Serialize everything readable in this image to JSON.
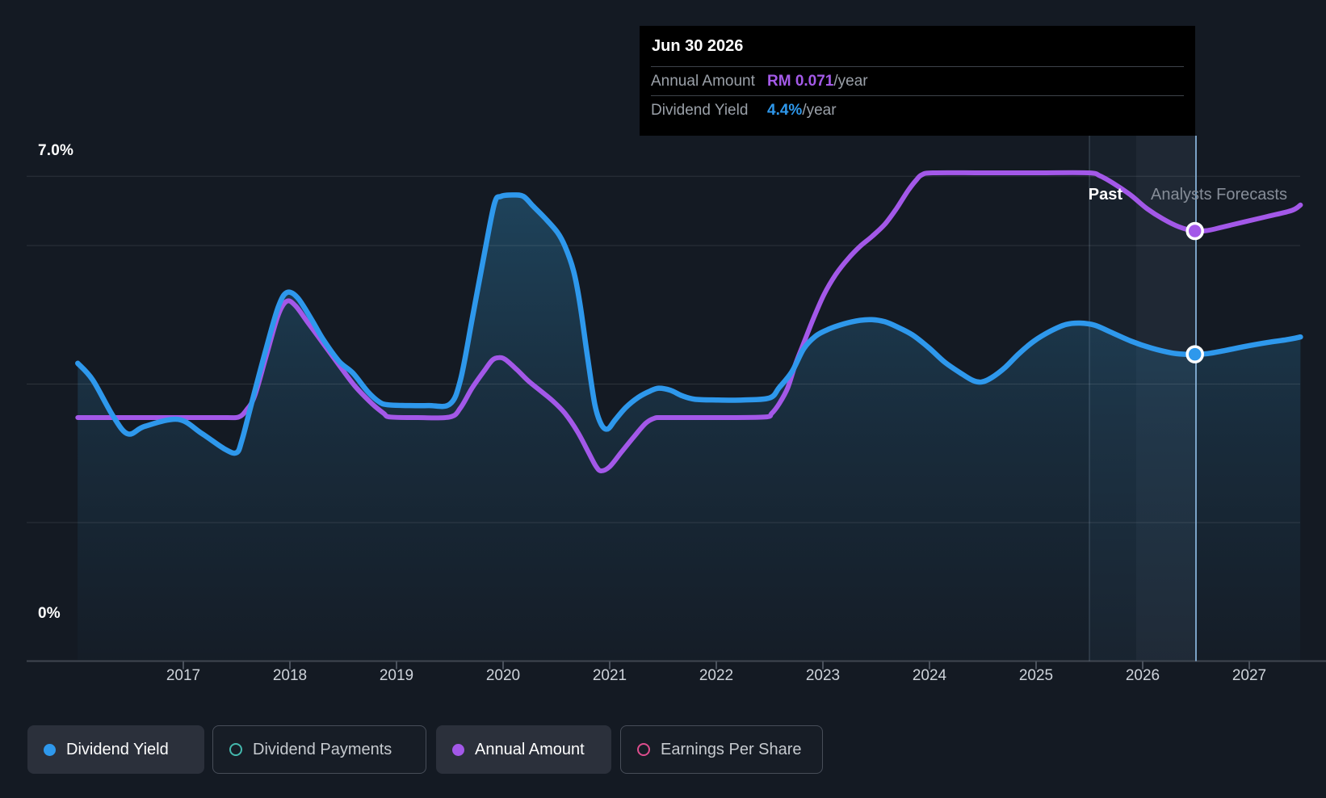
{
  "y_axis": {
    "top_label": "7.0%",
    "bottom_label": "0%"
  },
  "x_axis": {
    "years": [
      "2017",
      "2018",
      "2019",
      "2020",
      "2021",
      "2022",
      "2023",
      "2024",
      "2025",
      "2026",
      "2027"
    ]
  },
  "annotations": {
    "past": "Past",
    "forecast": "Analysts Forecasts"
  },
  "tooltip": {
    "date": "Jun 30 2026",
    "rows": [
      {
        "label": "Annual Amount",
        "value": "RM 0.071",
        "suffix": "/year",
        "color": "#a45ae8"
      },
      {
        "label": "Dividend Yield",
        "value": "4.4%",
        "suffix": "/year",
        "color": "#2e98ec"
      }
    ]
  },
  "legend": [
    {
      "label": "Dividend Yield",
      "color": "#2e98ec",
      "style": "filled",
      "active": true
    },
    {
      "label": "Dividend Payments",
      "color": "#44b8ad",
      "style": "ring",
      "active": false
    },
    {
      "label": "Annual Amount",
      "color": "#a358e8",
      "style": "filled",
      "active": true
    },
    {
      "label": "Earnings Per Share",
      "color": "#dd4d8d",
      "style": "ring",
      "active": false
    }
  ],
  "chart_data": {
    "type": "area",
    "x_unit": "year",
    "x_range": [
      2016.0,
      2027.5
    ],
    "ylim_percent": [
      0,
      7.0
    ],
    "gridlines_percent": [
      2,
      4,
      6,
      7
    ],
    "grid": true,
    "legend_position": "bottom",
    "past_until": 2025.5,
    "hover_x": 2026.5,
    "series": [
      {
        "name": "Dividend Yield",
        "unit": "percent",
        "color": "#2e98ec",
        "area": true,
        "points": [
          [
            2016.01,
            4.3
          ],
          [
            2016.15,
            4.06
          ],
          [
            2016.34,
            3.54
          ],
          [
            2016.48,
            3.28
          ],
          [
            2016.64,
            3.39
          ],
          [
            2016.95,
            3.49
          ],
          [
            2017.17,
            3.29
          ],
          [
            2017.39,
            3.06
          ],
          [
            2017.5,
            3.01
          ],
          [
            2017.55,
            3.19
          ],
          [
            2017.63,
            3.66
          ],
          [
            2017.78,
            4.53
          ],
          [
            2017.89,
            5.11
          ],
          [
            2017.97,
            5.32
          ],
          [
            2018.07,
            5.25
          ],
          [
            2018.2,
            4.94
          ],
          [
            2018.31,
            4.65
          ],
          [
            2018.46,
            4.33
          ],
          [
            2018.59,
            4.16
          ],
          [
            2018.73,
            3.89
          ],
          [
            2018.84,
            3.74
          ],
          [
            2018.92,
            3.7
          ],
          [
            2019.1,
            3.69
          ],
          [
            2019.3,
            3.69
          ],
          [
            2019.5,
            3.71
          ],
          [
            2019.6,
            4.06
          ],
          [
            2019.71,
            4.94
          ],
          [
            2019.83,
            5.93
          ],
          [
            2019.92,
            6.61
          ],
          [
            2019.98,
            6.71
          ],
          [
            2020.09,
            6.73
          ],
          [
            2020.19,
            6.71
          ],
          [
            2020.28,
            6.57
          ],
          [
            2020.39,
            6.4
          ],
          [
            2020.51,
            6.19
          ],
          [
            2020.58,
            5.99
          ],
          [
            2020.66,
            5.64
          ],
          [
            2020.72,
            5.17
          ],
          [
            2020.79,
            4.41
          ],
          [
            2020.86,
            3.71
          ],
          [
            2020.92,
            3.42
          ],
          [
            2020.98,
            3.35
          ],
          [
            2021.05,
            3.48
          ],
          [
            2021.15,
            3.66
          ],
          [
            2021.27,
            3.81
          ],
          [
            2021.38,
            3.9
          ],
          [
            2021.46,
            3.94
          ],
          [
            2021.57,
            3.91
          ],
          [
            2021.68,
            3.83
          ],
          [
            2021.8,
            3.78
          ],
          [
            2022.0,
            3.77
          ],
          [
            2022.25,
            3.77
          ],
          [
            2022.5,
            3.8
          ],
          [
            2022.59,
            3.95
          ],
          [
            2022.71,
            4.18
          ],
          [
            2022.82,
            4.51
          ],
          [
            2022.93,
            4.69
          ],
          [
            2023.05,
            4.79
          ],
          [
            2023.2,
            4.87
          ],
          [
            2023.35,
            4.92
          ],
          [
            2023.46,
            4.93
          ],
          [
            2023.58,
            4.9
          ],
          [
            2023.69,
            4.83
          ],
          [
            2023.84,
            4.71
          ],
          [
            2023.99,
            4.53
          ],
          [
            2024.14,
            4.32
          ],
          [
            2024.3,
            4.15
          ],
          [
            2024.41,
            4.05
          ],
          [
            2024.49,
            4.03
          ],
          [
            2024.58,
            4.09
          ],
          [
            2024.71,
            4.24
          ],
          [
            2024.84,
            4.44
          ],
          [
            2024.98,
            4.62
          ],
          [
            2025.13,
            4.76
          ],
          [
            2025.28,
            4.86
          ],
          [
            2025.41,
            4.88
          ],
          [
            2025.55,
            4.85
          ],
          [
            2025.7,
            4.75
          ],
          [
            2025.89,
            4.62
          ],
          [
            2026.08,
            4.52
          ],
          [
            2026.27,
            4.45
          ],
          [
            2026.4,
            4.43
          ],
          [
            2026.49,
            4.43
          ],
          [
            2026.61,
            4.44
          ],
          [
            2026.76,
            4.48
          ],
          [
            2026.95,
            4.54
          ],
          [
            2027.17,
            4.6
          ],
          [
            2027.35,
            4.64
          ],
          [
            2027.48,
            4.68
          ]
        ]
      },
      {
        "name": "Annual Amount",
        "unit": "RM",
        "color": "#a358e8",
        "area": false,
        "points": [
          [
            2016.01,
            0.0402
          ],
          [
            2016.5,
            0.0402
          ],
          [
            2017.0,
            0.0402
          ],
          [
            2017.4,
            0.0402
          ],
          [
            2017.52,
            0.0403
          ],
          [
            2017.59,
            0.0414
          ],
          [
            2017.67,
            0.0438
          ],
          [
            2017.78,
            0.0505
          ],
          [
            2017.89,
            0.0571
          ],
          [
            2017.97,
            0.0594
          ],
          [
            2018.05,
            0.0587
          ],
          [
            2018.16,
            0.0561
          ],
          [
            2018.31,
            0.0525
          ],
          [
            2018.46,
            0.0489
          ],
          [
            2018.61,
            0.0454
          ],
          [
            2018.77,
            0.0425
          ],
          [
            2018.88,
            0.0409
          ],
          [
            2018.94,
            0.0403
          ],
          [
            2019.2,
            0.0402
          ],
          [
            2019.5,
            0.0403
          ],
          [
            2019.6,
            0.0418
          ],
          [
            2019.71,
            0.0451
          ],
          [
            2019.83,
            0.0481
          ],
          [
            2019.9,
            0.0497
          ],
          [
            2019.96,
            0.0501
          ],
          [
            2020.02,
            0.0498
          ],
          [
            2020.13,
            0.0481
          ],
          [
            2020.24,
            0.0462
          ],
          [
            2020.36,
            0.0445
          ],
          [
            2020.47,
            0.0429
          ],
          [
            2020.58,
            0.0409
          ],
          [
            2020.7,
            0.0378
          ],
          [
            2020.8,
            0.0345
          ],
          [
            2020.87,
            0.0322
          ],
          [
            2020.92,
            0.0314
          ],
          [
            2021.0,
            0.0321
          ],
          [
            2021.11,
            0.0345
          ],
          [
            2021.23,
            0.0371
          ],
          [
            2021.34,
            0.0393
          ],
          [
            2021.42,
            0.0401
          ],
          [
            2021.49,
            0.0402
          ],
          [
            2021.8,
            0.0402
          ],
          [
            2022.1,
            0.0402
          ],
          [
            2022.46,
            0.0403
          ],
          [
            2022.52,
            0.0409
          ],
          [
            2022.59,
            0.0425
          ],
          [
            2022.67,
            0.0451
          ],
          [
            2022.74,
            0.0489
          ],
          [
            2022.82,
            0.0525
          ],
          [
            2022.91,
            0.0565
          ],
          [
            2023.01,
            0.0605
          ],
          [
            2023.12,
            0.0638
          ],
          [
            2023.24,
            0.0665
          ],
          [
            2023.35,
            0.0685
          ],
          [
            2023.46,
            0.0701
          ],
          [
            2023.58,
            0.0721
          ],
          [
            2023.69,
            0.0747
          ],
          [
            2023.8,
            0.0777
          ],
          [
            2023.88,
            0.0795
          ],
          [
            2023.93,
            0.0803
          ],
          [
            2024.03,
            0.0806
          ],
          [
            2024.5,
            0.0806
          ],
          [
            2025.0,
            0.0806
          ],
          [
            2025.49,
            0.0806
          ],
          [
            2025.6,
            0.0801
          ],
          [
            2025.74,
            0.0787
          ],
          [
            2025.89,
            0.0769
          ],
          [
            2026.04,
            0.0747
          ],
          [
            2026.19,
            0.073
          ],
          [
            2026.34,
            0.0717
          ],
          [
            2026.49,
            0.071
          ],
          [
            2026.61,
            0.0711
          ],
          [
            2026.76,
            0.0717
          ],
          [
            2026.95,
            0.0725
          ],
          [
            2027.17,
            0.0734
          ],
          [
            2027.4,
            0.0744
          ],
          [
            2027.48,
            0.0753
          ]
        ]
      }
    ],
    "markers": [
      {
        "series": "Annual Amount",
        "x": 2026.49,
        "value": 0.071,
        "display": "RM 0.071/year"
      },
      {
        "series": "Dividend Yield",
        "x": 2026.49,
        "value": 4.43,
        "display": "4.4%/year"
      }
    ]
  }
}
